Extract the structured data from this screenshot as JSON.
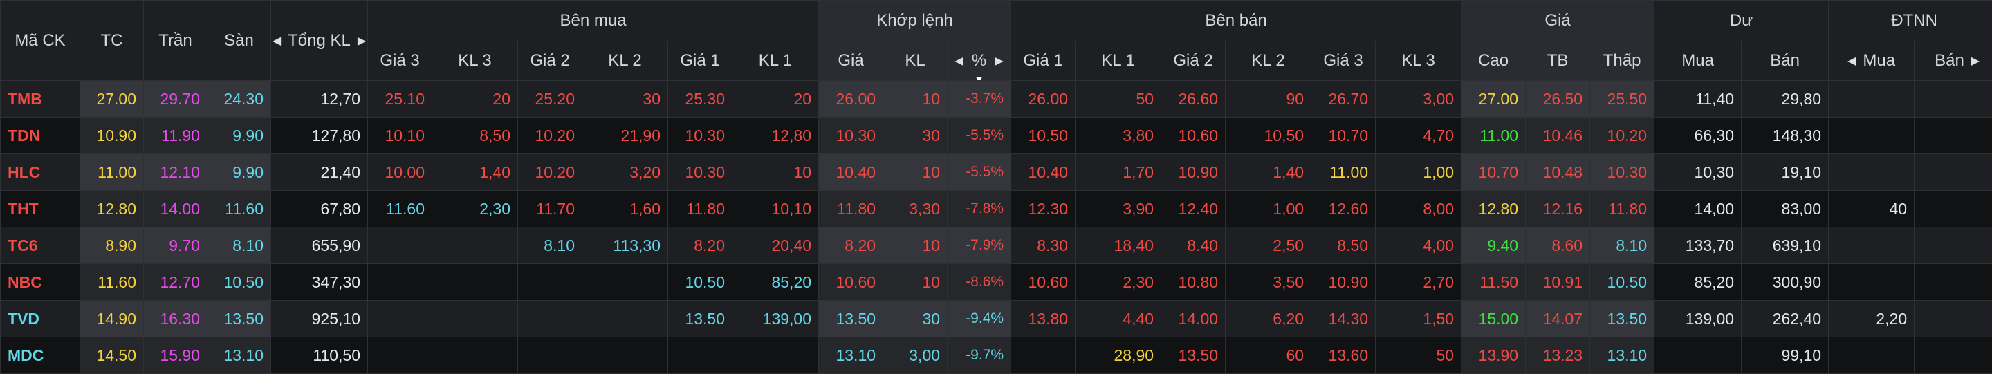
{
  "colors": {
    "red": "#f04a45",
    "yellow": "#f2d33b",
    "ceiling": "#e54bea",
    "floor": "#61d7e8",
    "green": "#3fe03f",
    "white": "#e6e7ea"
  },
  "header": {
    "symbol": "Mã CK",
    "ref": "TC",
    "ceiling": "Trần",
    "floor": "Sàn",
    "total_vol": "Tổng KL",
    "bid_group": "Bên mua",
    "match_group": "Khớp lệnh",
    "ask_group": "Bên bán",
    "price_group": "Giá",
    "remain_group": "Dư",
    "foreign_group": "ĐTNN",
    "bid_cols": [
      "Giá 3",
      "KL 3",
      "Giá 2",
      "KL 2",
      "Giá 1",
      "KL 1"
    ],
    "match_cols": [
      "Giá",
      "KL",
      "%"
    ],
    "ask_cols": [
      "Giá 1",
      "KL 1",
      "Giá 2",
      "KL 2",
      "Giá 3",
      "KL 3"
    ],
    "price_cols": [
      "Cao",
      "TB",
      "Thấp"
    ],
    "remain_cols": [
      "Mua",
      "Bán"
    ],
    "foreign_cols": [
      "Mua",
      "Bán"
    ],
    "sort_icon": "triangle-down-icon",
    "arrow_left_icon": "triangle-left-icon",
    "arrow_right_icon": "triangle-right-icon"
  },
  "rows": [
    {
      "cells": [
        [
          "TMB",
          "red"
        ],
        [
          "27.00",
          "yellow"
        ],
        [
          "29.70",
          "ceiling"
        ],
        [
          "24.30",
          "floor"
        ],
        [
          "12,70",
          "white"
        ],
        [
          "25.10",
          "red"
        ],
        [
          "20",
          "red"
        ],
        [
          "25.20",
          "red"
        ],
        [
          "30",
          "red"
        ],
        [
          "25.30",
          "red"
        ],
        [
          "20",
          "red"
        ],
        [
          "26.00",
          "red"
        ],
        [
          "10",
          "red"
        ],
        [
          "-3.7%",
          "red"
        ],
        [
          "26.00",
          "red"
        ],
        [
          "50",
          "red"
        ],
        [
          "26.60",
          "red"
        ],
        [
          "90",
          "red"
        ],
        [
          "26.70",
          "red"
        ],
        [
          "3,00",
          "red"
        ],
        [
          "27.00",
          "yellow"
        ],
        [
          "26.50",
          "red"
        ],
        [
          "25.50",
          "red"
        ],
        [
          "11,40",
          "white"
        ],
        [
          "29,80",
          "white"
        ],
        [
          "",
          ""
        ],
        [
          "",
          ""
        ]
      ]
    },
    {
      "cells": [
        [
          "TDN",
          "red"
        ],
        [
          "10.90",
          "yellow"
        ],
        [
          "11.90",
          "ceiling"
        ],
        [
          "9.90",
          "floor"
        ],
        [
          "127,80",
          "white"
        ],
        [
          "10.10",
          "red"
        ],
        [
          "8,50",
          "red"
        ],
        [
          "10.20",
          "red"
        ],
        [
          "21,90",
          "red"
        ],
        [
          "10.30",
          "red"
        ],
        [
          "12,80",
          "red"
        ],
        [
          "10.30",
          "red"
        ],
        [
          "30",
          "red"
        ],
        [
          "-5.5%",
          "red"
        ],
        [
          "10.50",
          "red"
        ],
        [
          "3,80",
          "red"
        ],
        [
          "10.60",
          "red"
        ],
        [
          "10,50",
          "red"
        ],
        [
          "10.70",
          "red"
        ],
        [
          "4,70",
          "red"
        ],
        [
          "11.00",
          "green"
        ],
        [
          "10.46",
          "red"
        ],
        [
          "10.20",
          "red"
        ],
        [
          "66,30",
          "white"
        ],
        [
          "148,30",
          "white"
        ],
        [
          "",
          ""
        ],
        [
          "",
          ""
        ]
      ]
    },
    {
      "cells": [
        [
          "HLC",
          "red"
        ],
        [
          "11.00",
          "yellow"
        ],
        [
          "12.10",
          "ceiling"
        ],
        [
          "9.90",
          "floor"
        ],
        [
          "21,40",
          "white"
        ],
        [
          "10.00",
          "red"
        ],
        [
          "1,40",
          "red"
        ],
        [
          "10.20",
          "red"
        ],
        [
          "3,20",
          "red"
        ],
        [
          "10.30",
          "red"
        ],
        [
          "10",
          "red"
        ],
        [
          "10.40",
          "red"
        ],
        [
          "10",
          "red"
        ],
        [
          "-5.5%",
          "red"
        ],
        [
          "10.40",
          "red"
        ],
        [
          "1,70",
          "red"
        ],
        [
          "10.90",
          "red"
        ],
        [
          "1,40",
          "red"
        ],
        [
          "11.00",
          "yellow"
        ],
        [
          "1,00",
          "yellow"
        ],
        [
          "10.70",
          "red"
        ],
        [
          "10.48",
          "red"
        ],
        [
          "10.30",
          "red"
        ],
        [
          "10,30",
          "white"
        ],
        [
          "19,10",
          "white"
        ],
        [
          "",
          ""
        ],
        [
          "",
          ""
        ]
      ]
    },
    {
      "cells": [
        [
          "THT",
          "red"
        ],
        [
          "12.80",
          "yellow"
        ],
        [
          "14.00",
          "ceiling"
        ],
        [
          "11.60",
          "floor"
        ],
        [
          "67,80",
          "white"
        ],
        [
          "11.60",
          "floor"
        ],
        [
          "2,30",
          "floor"
        ],
        [
          "11.70",
          "red"
        ],
        [
          "1,60",
          "red"
        ],
        [
          "11.80",
          "red"
        ],
        [
          "10,10",
          "red"
        ],
        [
          "11.80",
          "red"
        ],
        [
          "3,30",
          "red"
        ],
        [
          "-7.8%",
          "red"
        ],
        [
          "12.30",
          "red"
        ],
        [
          "3,90",
          "red"
        ],
        [
          "12.40",
          "red"
        ],
        [
          "1,00",
          "red"
        ],
        [
          "12.60",
          "red"
        ],
        [
          "8,00",
          "red"
        ],
        [
          "12.80",
          "yellow"
        ],
        [
          "12.16",
          "red"
        ],
        [
          "11.80",
          "red"
        ],
        [
          "14,00",
          "white"
        ],
        [
          "83,00",
          "white"
        ],
        [
          "40",
          "white"
        ],
        [
          "",
          ""
        ]
      ]
    },
    {
      "cells": [
        [
          "TC6",
          "red"
        ],
        [
          "8.90",
          "yellow"
        ],
        [
          "9.70",
          "ceiling"
        ],
        [
          "8.10",
          "floor"
        ],
        [
          "655,90",
          "white"
        ],
        [
          "",
          ""
        ],
        [
          "",
          ""
        ],
        [
          "8.10",
          "floor"
        ],
        [
          "113,30",
          "floor"
        ],
        [
          "8.20",
          "red"
        ],
        [
          "20,40",
          "red"
        ],
        [
          "8.20",
          "red"
        ],
        [
          "10",
          "red"
        ],
        [
          "-7.9%",
          "red"
        ],
        [
          "8.30",
          "red"
        ],
        [
          "18,40",
          "red"
        ],
        [
          "8.40",
          "red"
        ],
        [
          "2,50",
          "red"
        ],
        [
          "8.50",
          "red"
        ],
        [
          "4,00",
          "red"
        ],
        [
          "9.40",
          "green"
        ],
        [
          "8.60",
          "red"
        ],
        [
          "8.10",
          "floor"
        ],
        [
          "133,70",
          "white"
        ],
        [
          "639,10",
          "white"
        ],
        [
          "",
          ""
        ],
        [
          "",
          ""
        ]
      ]
    },
    {
      "cells": [
        [
          "NBC",
          "red"
        ],
        [
          "11.60",
          "yellow"
        ],
        [
          "12.70",
          "ceiling"
        ],
        [
          "10.50",
          "floor"
        ],
        [
          "347,30",
          "white"
        ],
        [
          "",
          ""
        ],
        [
          "",
          ""
        ],
        [
          "",
          ""
        ],
        [
          "",
          ""
        ],
        [
          "10.50",
          "floor"
        ],
        [
          "85,20",
          "floor"
        ],
        [
          "10.60",
          "red"
        ],
        [
          "10",
          "red"
        ],
        [
          "-8.6%",
          "red"
        ],
        [
          "10.60",
          "red"
        ],
        [
          "2,30",
          "red"
        ],
        [
          "10.80",
          "red"
        ],
        [
          "3,50",
          "red"
        ],
        [
          "10.90",
          "red"
        ],
        [
          "2,70",
          "red"
        ],
        [
          "11.50",
          "red"
        ],
        [
          "10.91",
          "red"
        ],
        [
          "10.50",
          "floor"
        ],
        [
          "85,20",
          "white"
        ],
        [
          "300,90",
          "white"
        ],
        [
          "",
          ""
        ],
        [
          "",
          ""
        ]
      ]
    },
    {
      "cells": [
        [
          "TVD",
          "floor"
        ],
        [
          "14.90",
          "yellow"
        ],
        [
          "16.30",
          "ceiling"
        ],
        [
          "13.50",
          "floor"
        ],
        [
          "925,10",
          "white"
        ],
        [
          "",
          ""
        ],
        [
          "",
          ""
        ],
        [
          "",
          ""
        ],
        [
          "",
          ""
        ],
        [
          "13.50",
          "floor"
        ],
        [
          "139,00",
          "floor"
        ],
        [
          "13.50",
          "floor"
        ],
        [
          "30",
          "floor"
        ],
        [
          "-9.4%",
          "floor"
        ],
        [
          "13.80",
          "red"
        ],
        [
          "4,40",
          "red"
        ],
        [
          "14.00",
          "red"
        ],
        [
          "6,20",
          "red"
        ],
        [
          "14.30",
          "red"
        ],
        [
          "1,50",
          "red"
        ],
        [
          "15.00",
          "green"
        ],
        [
          "14.07",
          "red"
        ],
        [
          "13.50",
          "floor"
        ],
        [
          "139,00",
          "white"
        ],
        [
          "262,40",
          "white"
        ],
        [
          "2,20",
          "white"
        ],
        [
          "",
          ""
        ]
      ]
    },
    {
      "cells": [
        [
          "MDC",
          "floor"
        ],
        [
          "14.50",
          "yellow"
        ],
        [
          "15.90",
          "ceiling"
        ],
        [
          "13.10",
          "floor"
        ],
        [
          "110,50",
          "white"
        ],
        [
          "",
          ""
        ],
        [
          "",
          ""
        ],
        [
          "",
          ""
        ],
        [
          "",
          ""
        ],
        [
          "",
          ""
        ],
        [
          "",
          ""
        ],
        [
          "13.10",
          "floor"
        ],
        [
          "3,00",
          "floor"
        ],
        [
          "-9.7%",
          "floor"
        ],
        [
          "",
          ""
        ],
        [
          "28,90",
          "yellow"
        ],
        [
          "13.50",
          "red"
        ],
        [
          "60",
          "red"
        ],
        [
          "13.60",
          "red"
        ],
        [
          "50",
          "red"
        ],
        [
          "13.90",
          "red"
        ],
        [
          "13.23",
          "red"
        ],
        [
          "13.10",
          "floor"
        ],
        [
          "",
          ""
        ],
        [
          "99,10",
          "white"
        ],
        [
          "",
          ""
        ],
        [
          "",
          ""
        ]
      ]
    }
  ]
}
